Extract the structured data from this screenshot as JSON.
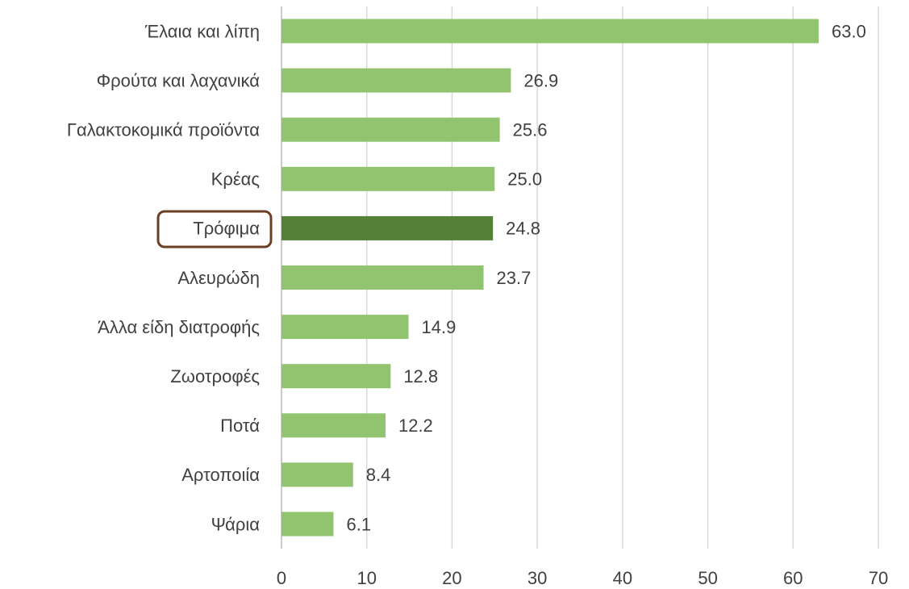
{
  "chart_data": {
    "type": "barh",
    "categories": [
      "Έλαια και λίπη",
      "Φρούτα και λαχανικά",
      "Γαλακτοκομικά προϊόντα",
      "Κρέας",
      "Τρόφιμα",
      "Αλευρώδη",
      "Άλλα είδη διατροφής",
      "Ζωοτροφές",
      "Ποτά",
      "Αρτοποιία",
      "Ψάρια"
    ],
    "values": [
      63.0,
      26.9,
      25.6,
      25.0,
      24.8,
      23.7,
      14.9,
      12.8,
      12.2,
      8.4,
      6.1
    ],
    "value_labels": [
      "63.0",
      "26.9",
      "25.6",
      "25.0",
      "24.8",
      "23.7",
      "14.9",
      "12.8",
      "12.2",
      "8.4",
      "6.1"
    ],
    "colors": [
      "#92c46f",
      "#92c46f",
      "#92c46f",
      "#92c46f",
      "#538135",
      "#92c46f",
      "#92c46f",
      "#92c46f",
      "#92c46f",
      "#92c46f",
      "#92c46f"
    ],
    "xlim": [
      0,
      70
    ],
    "xticks": [
      0,
      10,
      20,
      30,
      40,
      50,
      60,
      70
    ],
    "grid": true
  }
}
